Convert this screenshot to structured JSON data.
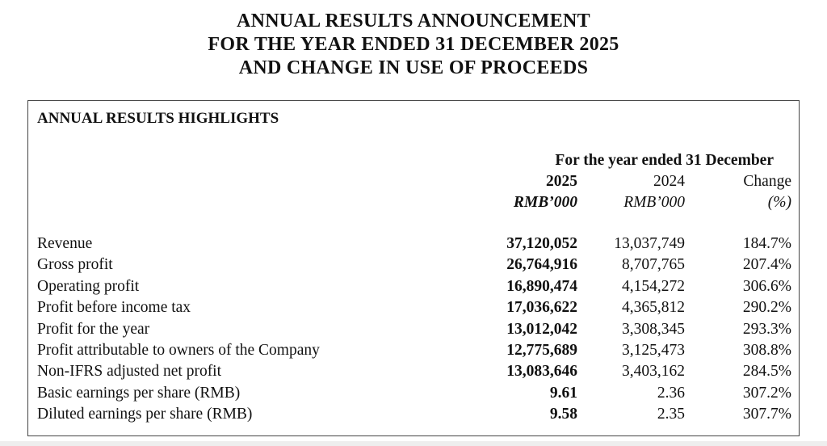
{
  "header": {
    "title": [
      "ANNUAL RESULTS ANNOUNCEMENT",
      "FOR THE YEAR ENDED 31 DECEMBER 2025",
      "AND CHANGE IN USE OF PROCEEDS"
    ]
  },
  "section": {
    "title": "ANNUAL RESULTS HIGHLIGHTS"
  },
  "table": {
    "period_header": "For the year ended 31 December",
    "columns": [
      {
        "heading": "2025",
        "unit": "RMB’000"
      },
      {
        "heading": "2024",
        "unit": "RMB’000"
      },
      {
        "heading": "Change",
        "unit": "(%)"
      }
    ],
    "rows": [
      [
        "Revenue",
        "37,120,052",
        "13,037,749",
        "184.7%"
      ],
      [
        "Gross profit",
        "26,764,916",
        "8,707,765",
        "207.4%"
      ],
      [
        "Operating profit",
        "16,890,474",
        "4,154,272",
        "306.6%"
      ],
      [
        "Profit before income tax",
        "17,036,622",
        "4,365,812",
        "290.2%"
      ],
      [
        "Profit for the year",
        "13,012,042",
        "3,308,345",
        "293.3%"
      ],
      [
        "Profit attributable to owners of the Company",
        "12,775,689",
        "3,125,473",
        "308.8%"
      ],
      [
        "Non-IFRS adjusted net profit",
        "13,083,646",
        "3,403,162",
        "284.5%"
      ],
      [
        "Basic earnings per share (RMB)",
        "9.61",
        "2.36",
        "307.2%"
      ],
      [
        "Diluted earnings per share (RMB)",
        "9.58",
        "2.35",
        "307.7%"
      ]
    ]
  }
}
